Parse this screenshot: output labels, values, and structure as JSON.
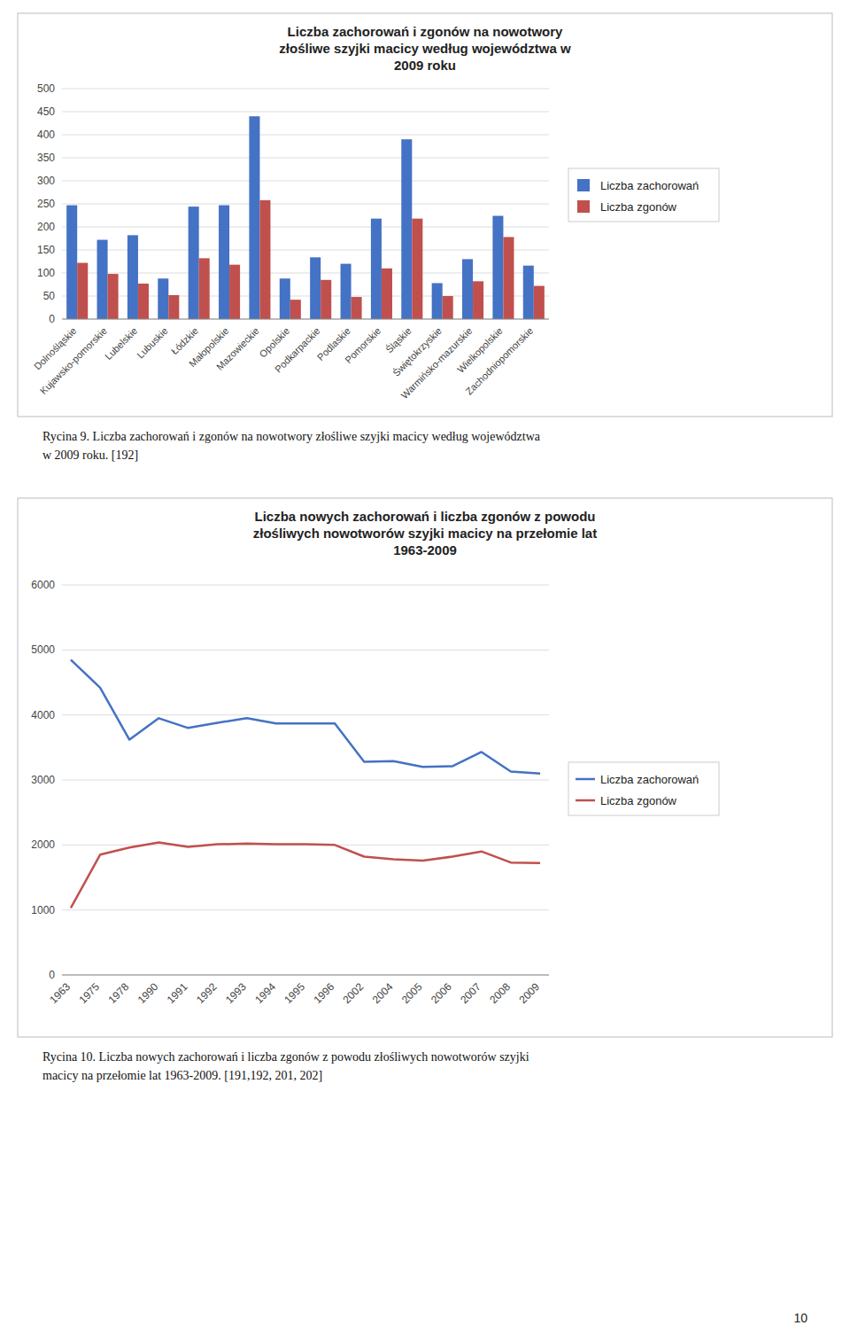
{
  "chart_data": [
    {
      "type": "bar",
      "title": "Liczba zachorowań i zgonów na nowotwory\nzłośliwe szyjki macicy według województwa w\n2009 roku",
      "categories": [
        "Dolnośląskie",
        "Kujawsko-pomorskie",
        "Lubelskie",
        "Lubuskie",
        "Łódzkie",
        "Małopolskie",
        "Mazowieckie",
        "Opolskie",
        "Podkarpackie",
        "Podlaskie",
        "Pomorskie",
        "Śląskie",
        "Świętokrzyskie",
        "Warmińsko-mazurskie",
        "Wielkopolskie",
        "Zachodniopomorskie"
      ],
      "series": [
        {
          "name": "Liczba zachorowań",
          "color": "#4472C4",
          "values": [
            247,
            172,
            182,
            88,
            244,
            247,
            440,
            88,
            134,
            120,
            218,
            390,
            78,
            130,
            224,
            116
          ]
        },
        {
          "name": "Liczba zgonów",
          "color": "#C0504D",
          "values": [
            122,
            98,
            77,
            52,
            132,
            118,
            258,
            42,
            85,
            48,
            110,
            218,
            50,
            82,
            178,
            72
          ]
        }
      ],
      "ylim": [
        0,
        500
      ],
      "yticks": [
        0,
        50,
        100,
        150,
        200,
        250,
        300,
        350,
        400,
        450,
        500
      ],
      "grid": true,
      "legend": "right",
      "annotations": [
        "Rycina 9. Liczba zachorowań i zgonów na nowotwory złośliwe szyjki macicy według województwa",
        "w 2009 roku. [192]"
      ]
    },
    {
      "type": "line",
      "title": "Liczba nowych zachorowań i liczba zgonów z powodu\nzłośliwych nowotworów szyjki macicy na przełomie lat\n1963-2009",
      "categories": [
        "1963",
        "1975",
        "1978",
        "1990",
        "1991",
        "1992",
        "1993",
        "1994",
        "1995",
        "1996",
        "2002",
        "2004",
        "2005",
        "2006",
        "2007",
        "2008",
        "2009"
      ],
      "series": [
        {
          "name": "Liczba zachorowań",
          "color": "#4472C4",
          "values": [
            4850,
            4420,
            3620,
            3950,
            3800,
            3880,
            3950,
            3870,
            3870,
            3870,
            3280,
            3290,
            3200,
            3210,
            3430,
            3130,
            3100
          ]
        },
        {
          "name": "Liczba zgonów",
          "color": "#C0504D",
          "values": [
            1030,
            1850,
            1960,
            2040,
            1970,
            2010,
            2020,
            2010,
            2010,
            2000,
            1820,
            1780,
            1760,
            1820,
            1900,
            1730,
            1720
          ]
        }
      ],
      "ylim": [
        0,
        6000
      ],
      "yticks": [
        0,
        1000,
        2000,
        3000,
        4000,
        5000,
        6000
      ],
      "grid": true,
      "legend": "right",
      "annotations": [
        "Rycina 10. Liczba nowych zachorowań i liczba zgonów z powodu złośliwych nowotworów szyjki",
        "macicy na przełomie lat 1963-2009. [191,192, 201, 202]"
      ]
    }
  ],
  "page_number": "10"
}
